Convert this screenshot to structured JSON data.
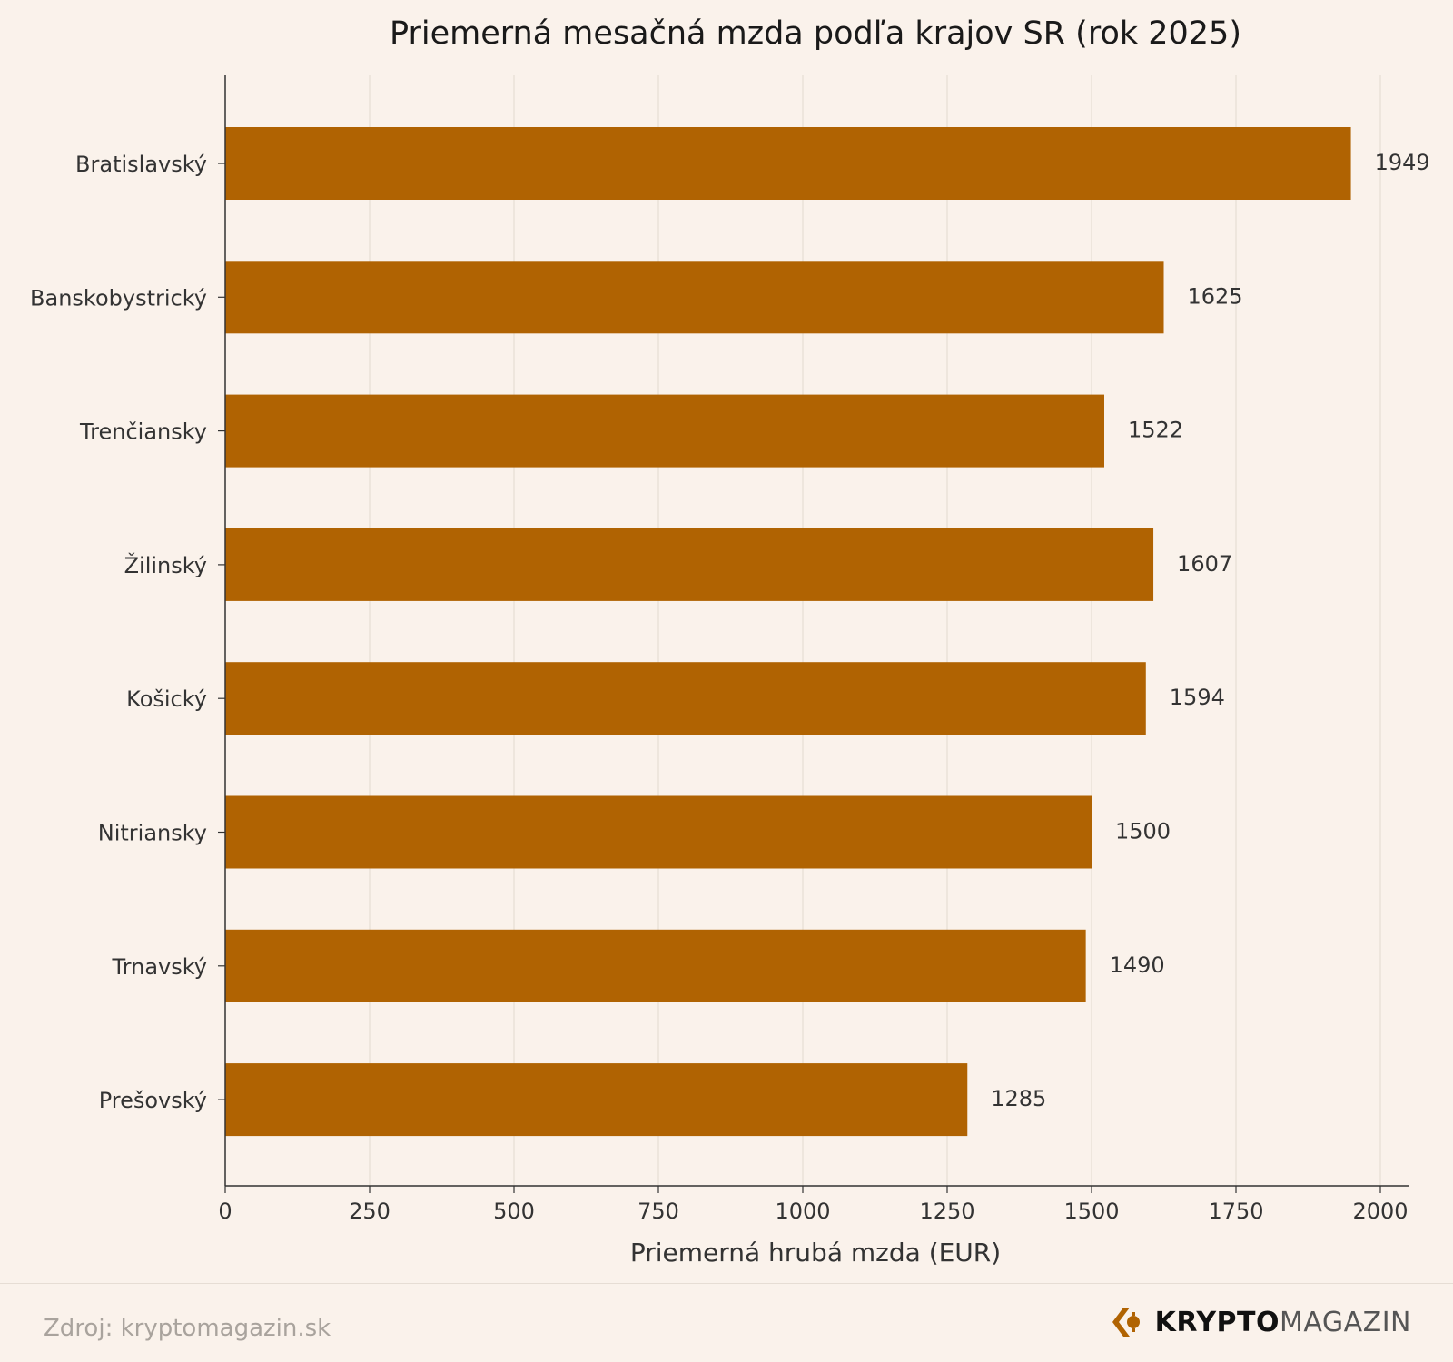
{
  "chart_data": {
    "type": "bar",
    "orientation": "horizontal",
    "title": "Priemerná mesačná mzda podľa krajov SR (rok 2025)",
    "xlabel": "Priemerná hrubá mzda (EUR)",
    "ylabel": "",
    "categories": [
      "Bratislavský",
      "Banskobystrický",
      "Trenčiansky",
      "Žilinský",
      "Košický",
      "Nitriansky",
      "Trnavský",
      "Prešovský"
    ],
    "values": [
      1949,
      1625,
      1522,
      1607,
      1594,
      1500,
      1490,
      1285
    ],
    "data_labels": [
      "1949",
      "1625",
      "1522",
      "1607",
      "1594",
      "1500",
      "1490",
      "1285"
    ],
    "xlim": [
      0,
      2050
    ],
    "xticks": [
      0,
      250,
      500,
      750,
      1000,
      1250,
      1500,
      1750,
      2000
    ],
    "grid": "vertical",
    "bar_color": "#b06302"
  },
  "footer": {
    "source": "Zdroj: kryptomagazin.sk",
    "logo_bold": "KRYPTO",
    "logo_light": "MAGAZIN"
  },
  "colors": {
    "background": "#faf2eb",
    "bar": "#b06302",
    "grid": "#e2d9cf",
    "axis": "#333333"
  },
  "icons": {
    "logo": "kryptomagazin-logo-icon"
  }
}
